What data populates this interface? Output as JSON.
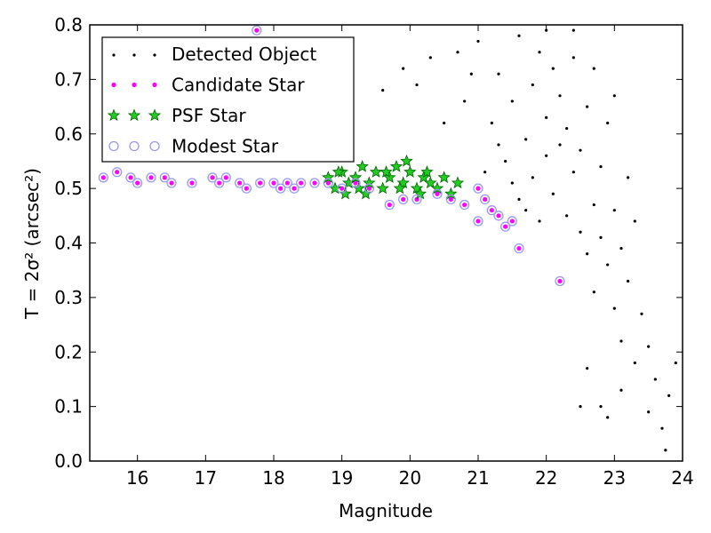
{
  "chart_data": {
    "type": "scatter",
    "title": "",
    "xlabel": "Magnitude",
    "ylabel": "T = 2σ² (arcsec²)",
    "xlim": [
      15.3,
      24.0
    ],
    "ylim": [
      0.0,
      0.8
    ],
    "grid": false,
    "legend_position": "top-left",
    "x_ticks": [
      "16",
      "17",
      "18",
      "19",
      "20",
      "21",
      "22",
      "23",
      "24"
    ],
    "y_ticks": [
      "0.0",
      "0.1",
      "0.2",
      "0.3",
      "0.4",
      "0.5",
      "0.6",
      "0.7",
      "0.8"
    ],
    "colors": {
      "detected": "#000000",
      "candidate": "#ff00ff",
      "psf_fill": "#22cc22",
      "psf_edge": "#006600",
      "modest": "#9999ee"
    },
    "series": [
      {
        "name": "Detected Object",
        "marker": "dot",
        "points": [
          [
            21.0,
            0.77
          ],
          [
            21.2,
            0.62
          ],
          [
            21.3,
            0.71
          ],
          [
            21.4,
            0.55
          ],
          [
            21.5,
            0.66
          ],
          [
            21.6,
            0.78
          ],
          [
            21.6,
            0.48
          ],
          [
            21.7,
            0.59
          ],
          [
            21.8,
            0.69
          ],
          [
            21.8,
            0.52
          ],
          [
            21.9,
            0.75
          ],
          [
            21.9,
            0.44
          ],
          [
            22.0,
            0.63
          ],
          [
            22.0,
            0.56
          ],
          [
            22.1,
            0.72
          ],
          [
            22.1,
            0.49
          ],
          [
            22.2,
            0.67
          ],
          [
            22.2,
            0.58
          ],
          [
            22.3,
            0.45
          ],
          [
            22.3,
            0.61
          ],
          [
            22.4,
            0.53
          ],
          [
            22.4,
            0.74
          ],
          [
            22.5,
            0.42
          ],
          [
            22.5,
            0.57
          ],
          [
            22.6,
            0.38
          ],
          [
            22.6,
            0.65
          ],
          [
            22.7,
            0.47
          ],
          [
            22.7,
            0.31
          ],
          [
            22.8,
            0.54
          ],
          [
            22.8,
            0.41
          ],
          [
            22.9,
            0.36
          ],
          [
            22.9,
            0.62
          ],
          [
            23.0,
            0.28
          ],
          [
            23.0,
            0.46
          ],
          [
            23.1,
            0.39
          ],
          [
            23.1,
            0.22
          ],
          [
            23.2,
            0.52
          ],
          [
            23.2,
            0.33
          ],
          [
            23.3,
            0.18
          ],
          [
            23.3,
            0.44
          ],
          [
            23.4,
            0.27
          ],
          [
            23.5,
            0.09
          ],
          [
            23.5,
            0.21
          ],
          [
            23.6,
            0.15
          ],
          [
            23.7,
            0.06
          ],
          [
            23.8,
            0.12
          ],
          [
            23.9,
            0.18
          ],
          [
            23.75,
            0.02
          ],
          [
            20.9,
            0.71
          ],
          [
            20.8,
            0.66
          ],
          [
            20.7,
            0.75
          ],
          [
            20.5,
            0.62
          ],
          [
            20.3,
            0.74
          ],
          [
            20.1,
            0.69
          ],
          [
            19.9,
            0.72
          ],
          [
            19.6,
            0.68
          ],
          [
            21.1,
            0.53
          ],
          [
            21.3,
            0.58
          ],
          [
            21.5,
            0.51
          ],
          [
            21.7,
            0.46
          ],
          [
            22.0,
            0.79
          ],
          [
            22.4,
            0.79
          ],
          [
            22.7,
            0.72
          ],
          [
            23.0,
            0.67
          ],
          [
            22.6,
            0.17
          ],
          [
            22.8,
            0.1
          ],
          [
            22.9,
            0.08
          ],
          [
            23.1,
            0.13
          ],
          [
            22.5,
            0.1
          ]
        ]
      },
      {
        "name": "Candidate Star",
        "marker": "circle",
        "points": [
          [
            15.5,
            0.52
          ],
          [
            15.7,
            0.53
          ],
          [
            15.9,
            0.52
          ],
          [
            16.0,
            0.51
          ],
          [
            16.2,
            0.52
          ],
          [
            16.4,
            0.52
          ],
          [
            16.5,
            0.51
          ],
          [
            16.8,
            0.51
          ],
          [
            17.1,
            0.52
          ],
          [
            17.2,
            0.51
          ],
          [
            17.3,
            0.52
          ],
          [
            17.5,
            0.51
          ],
          [
            17.6,
            0.5
          ],
          [
            17.8,
            0.51
          ],
          [
            18.0,
            0.51
          ],
          [
            18.1,
            0.5
          ],
          [
            18.2,
            0.51
          ],
          [
            18.3,
            0.5
          ],
          [
            18.4,
            0.51
          ],
          [
            18.6,
            0.51
          ],
          [
            18.8,
            0.51
          ],
          [
            19.0,
            0.5
          ],
          [
            19.2,
            0.51
          ],
          [
            19.4,
            0.5
          ],
          [
            19.7,
            0.47
          ],
          [
            19.9,
            0.48
          ],
          [
            20.1,
            0.48
          ],
          [
            20.4,
            0.49
          ],
          [
            20.6,
            0.48
          ],
          [
            20.8,
            0.47
          ],
          [
            21.0,
            0.5
          ],
          [
            21.0,
            0.44
          ],
          [
            21.1,
            0.48
          ],
          [
            21.2,
            0.46
          ],
          [
            21.3,
            0.45
          ],
          [
            21.4,
            0.43
          ],
          [
            21.5,
            0.44
          ],
          [
            21.6,
            0.39
          ],
          [
            22.2,
            0.33
          ],
          [
            17.75,
            0.79
          ]
        ]
      },
      {
        "name": "PSF Star",
        "marker": "star",
        "points": [
          [
            18.8,
            0.52
          ],
          [
            18.9,
            0.5
          ],
          [
            19.0,
            0.53
          ],
          [
            19.1,
            0.51
          ],
          [
            19.2,
            0.52
          ],
          [
            19.3,
            0.54
          ],
          [
            19.4,
            0.51
          ],
          [
            19.5,
            0.53
          ],
          [
            19.6,
            0.5
          ],
          [
            19.7,
            0.52
          ],
          [
            19.8,
            0.54
          ],
          [
            19.9,
            0.51
          ],
          [
            20.0,
            0.53
          ],
          [
            20.1,
            0.5
          ],
          [
            20.2,
            0.52
          ],
          [
            20.3,
            0.51
          ],
          [
            20.4,
            0.5
          ],
          [
            20.5,
            0.52
          ],
          [
            20.6,
            0.49
          ],
          [
            20.7,
            0.51
          ],
          [
            19.05,
            0.49
          ],
          [
            19.25,
            0.5
          ],
          [
            19.65,
            0.53
          ],
          [
            19.95,
            0.55
          ],
          [
            20.25,
            0.53
          ],
          [
            18.95,
            0.53
          ],
          [
            19.35,
            0.49
          ],
          [
            19.85,
            0.5
          ],
          [
            20.15,
            0.49
          ]
        ]
      },
      {
        "name": "Modest Star",
        "marker": "open-circle",
        "points": [
          [
            15.5,
            0.52
          ],
          [
            15.7,
            0.53
          ],
          [
            15.9,
            0.52
          ],
          [
            16.0,
            0.51
          ],
          [
            16.2,
            0.52
          ],
          [
            16.4,
            0.52
          ],
          [
            16.5,
            0.51
          ],
          [
            16.8,
            0.51
          ],
          [
            17.1,
            0.52
          ],
          [
            17.2,
            0.51
          ],
          [
            17.3,
            0.52
          ],
          [
            17.5,
            0.51
          ],
          [
            17.6,
            0.5
          ],
          [
            17.8,
            0.51
          ],
          [
            18.0,
            0.51
          ],
          [
            18.1,
            0.5
          ],
          [
            18.2,
            0.51
          ],
          [
            18.3,
            0.5
          ],
          [
            18.4,
            0.51
          ],
          [
            18.6,
            0.51
          ],
          [
            18.8,
            0.51
          ],
          [
            19.0,
            0.5
          ],
          [
            19.2,
            0.51
          ],
          [
            19.4,
            0.5
          ],
          [
            19.7,
            0.47
          ],
          [
            19.9,
            0.48
          ],
          [
            20.1,
            0.48
          ],
          [
            20.4,
            0.49
          ],
          [
            20.6,
            0.48
          ],
          [
            20.8,
            0.47
          ],
          [
            21.0,
            0.5
          ],
          [
            21.0,
            0.44
          ],
          [
            21.1,
            0.48
          ],
          [
            21.2,
            0.46
          ],
          [
            21.3,
            0.45
          ],
          [
            21.4,
            0.43
          ],
          [
            21.5,
            0.44
          ],
          [
            21.6,
            0.39
          ],
          [
            22.2,
            0.33
          ],
          [
            17.75,
            0.79
          ]
        ]
      }
    ]
  }
}
